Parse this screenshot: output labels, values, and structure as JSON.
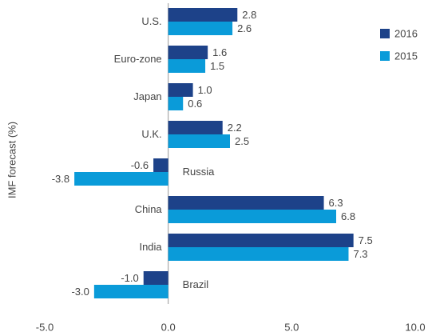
{
  "chart_data": {
    "type": "hbar",
    "y_axis_label": "IMF forecast (%)",
    "categories": [
      "U.S.",
      "Euro-zone",
      "Japan",
      "U.K.",
      "Russia",
      "China",
      "India",
      "Brazil"
    ],
    "series": [
      {
        "name": "2016",
        "color": "#1d4289",
        "values": [
          2.8,
          1.6,
          1.0,
          2.2,
          -0.6,
          6.3,
          7.5,
          -1.0
        ],
        "value_labels": [
          "2.8",
          "1.6",
          "1.0",
          "2.2",
          "-0.6",
          "6.3",
          "7.5",
          "-1.0"
        ]
      },
      {
        "name": "2015",
        "color": "#0a9bd9",
        "values": [
          2.6,
          1.5,
          0.6,
          2.5,
          -3.8,
          6.8,
          7.3,
          -3.0
        ],
        "value_labels": [
          "2.6",
          "1.5",
          "0.6",
          "2.5",
          "-3.8",
          "6.8",
          "7.3",
          "-3.0"
        ]
      }
    ],
    "xlim": [
      -5,
      10
    ],
    "xticks": [
      {
        "value": -5,
        "label": "-5.0"
      },
      {
        "value": 0,
        "label": "0.0"
      },
      {
        "value": 5,
        "label": "5.0"
      },
      {
        "value": 10,
        "label": "10.0"
      }
    ],
    "legend": "upper right"
  }
}
